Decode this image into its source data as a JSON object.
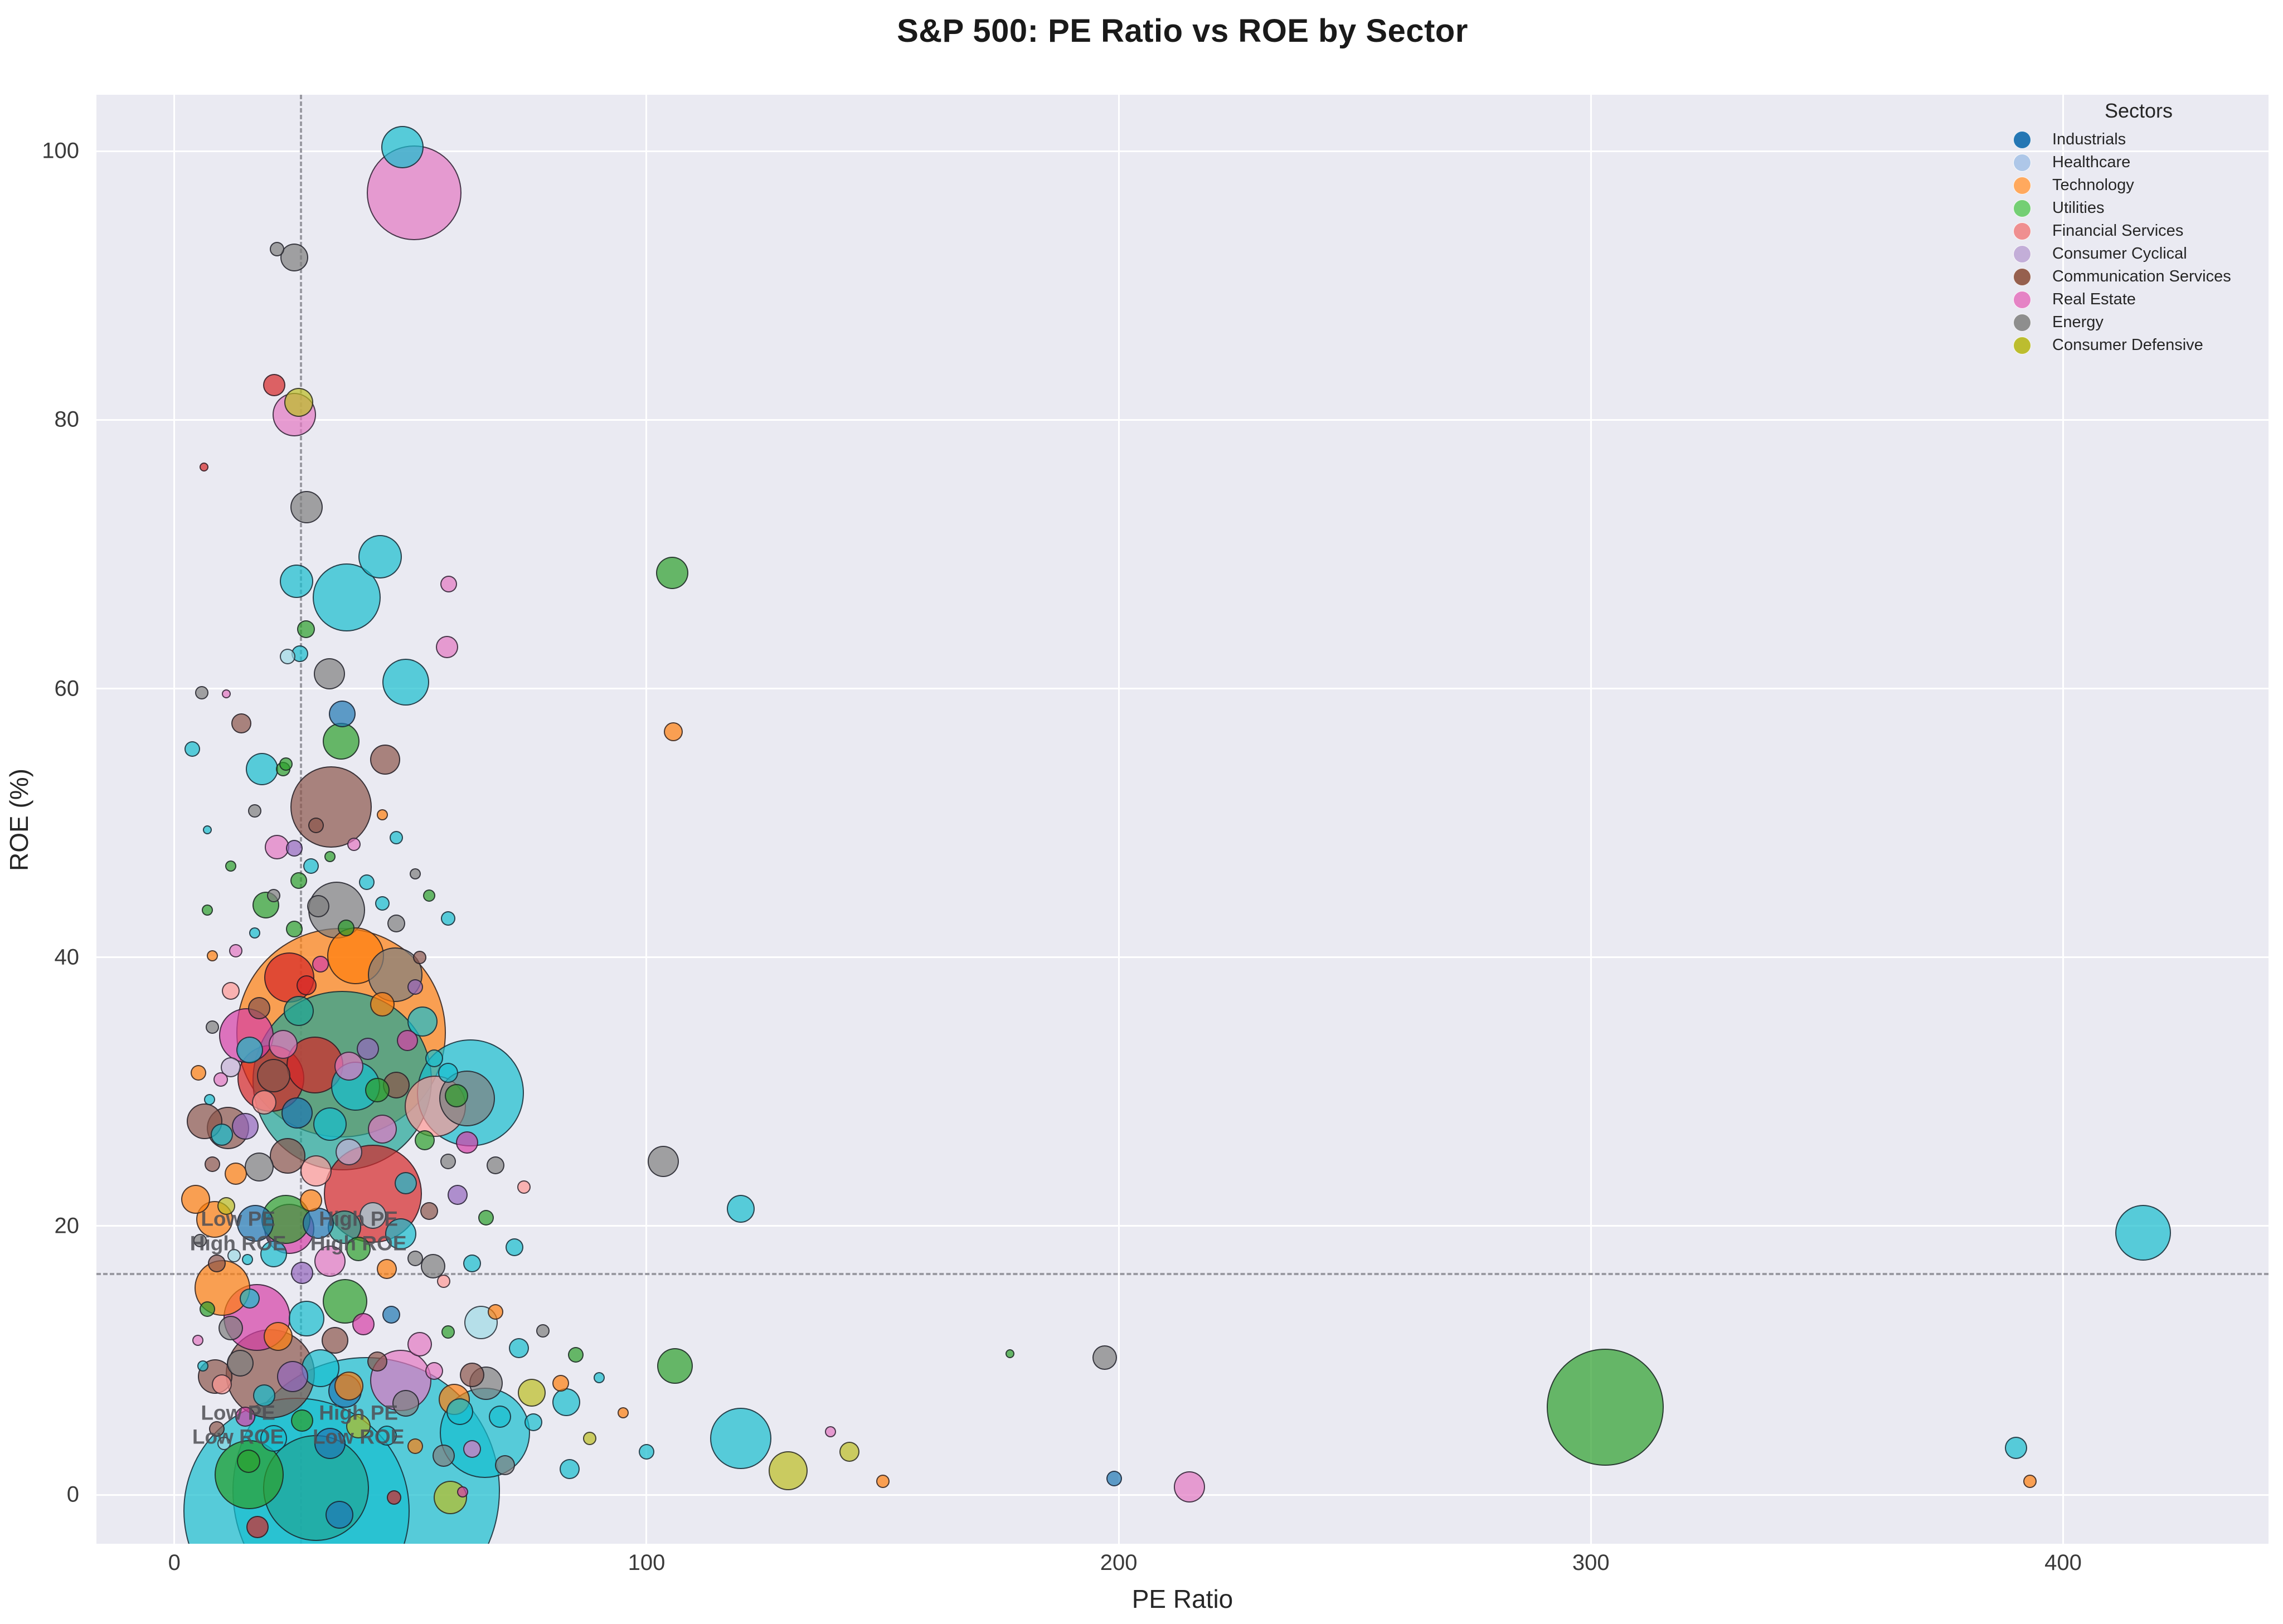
{
  "title": "S&P 500: PE Ratio vs ROE by Sector",
  "axes": {
    "xlabel": "PE Ratio",
    "ylabel": "ROE (%)",
    "x_ticks": [
      0,
      100,
      200,
      300,
      400
    ],
    "y_ticks": [
      0,
      20,
      40,
      60,
      80,
      100
    ],
    "xlim": [
      -16.5,
      443.5
    ],
    "ylim": [
      -3.65,
      104.2
    ],
    "grid": true
  },
  "legend": {
    "title": "Sectors",
    "position": "upper right",
    "items": [
      {
        "label": "Industrials",
        "color": "#2577b4"
      },
      {
        "label": "Healthcare",
        "color": "#aec7e8"
      },
      {
        "label": "Technology",
        "color": "#ffa95e"
      },
      {
        "label": "Utilities",
        "color": "#74cf74"
      },
      {
        "label": "Financial Services",
        "color": "#ef8f90"
      },
      {
        "label": "Consumer Cyclical",
        "color": "#c3aed8"
      },
      {
        "label": "Communication Services",
        "color": "#96604e"
      },
      {
        "label": "Real Estate",
        "color": "#e583c5"
      },
      {
        "label": "Energy",
        "color": "#8e8e8e"
      },
      {
        "label": "Consumer Defensive",
        "color": "#bcbd2f"
      }
    ]
  },
  "annotations": [
    {
      "text": "Low PE\nHigh ROE",
      "pe": 13.5,
      "roe": 19.6
    },
    {
      "text": "High PE\nHigh ROE",
      "pe": 39,
      "roe": 19.6
    },
    {
      "text": "Low PE\nLow ROE",
      "pe": 13.5,
      "roe": 5.2
    },
    {
      "text": "High PE\nLow ROE",
      "pe": 39,
      "roe": 5.2
    }
  ],
  "reference_lines": {
    "vertical_pe": 26.6,
    "horizontal_roe": 16.5
  },
  "chart_data": {
    "type": "scatter",
    "title": "S&P 500: PE Ratio vs ROE by Sector",
    "xlabel": "PE Ratio",
    "ylabel": "ROE (%)",
    "xlim": [
      -16.5,
      443.5
    ],
    "ylim": [
      -3.65,
      104.2
    ],
    "legend_position": "upper right",
    "point_alpha": 0.7,
    "colors": [
      "#1f77b4",
      "#aec7e8",
      "#ff7f0e",
      "#2ca02c",
      "#d62728",
      "#ff9896",
      "#9467bd",
      "#c5b0d5",
      "#8c564b",
      "#e377c2",
      "#7f7f7f",
      "#bcbd22",
      "#17becf",
      "#9edae5",
      "#d63fa6",
      "#1fa596"
    ],
    "points_format": [
      "pe_ratio",
      "roe_pct",
      "radius_px",
      "color_index"
    ],
    "points": [
      [
        48.3,
        100.3,
        38,
        12
      ],
      [
        50.8,
        96.9,
        85,
        9
      ],
      [
        21.8,
        92.7,
        13,
        10
      ],
      [
        25.4,
        92.1,
        25,
        10
      ],
      [
        6.3,
        76.5,
        8,
        4
      ],
      [
        21.1,
        82.6,
        20,
        4
      ],
      [
        26.4,
        81.3,
        26,
        11
      ],
      [
        25.4,
        80.4,
        39,
        9
      ],
      [
        28,
        73.5,
        29,
        10
      ],
      [
        43.6,
        69.8,
        39,
        12
      ],
      [
        25.9,
        68,
        30,
        12
      ],
      [
        36.5,
        66.8,
        61,
        12
      ],
      [
        5.8,
        59.7,
        12,
        10
      ],
      [
        3.8,
        55.5,
        14,
        12
      ],
      [
        27.9,
        64.4,
        16,
        3
      ],
      [
        26.6,
        62.6,
        15,
        12
      ],
      [
        24,
        62.4,
        14,
        13
      ],
      [
        57.7,
        63.1,
        20,
        9
      ],
      [
        58.1,
        67.8,
        15,
        9
      ],
      [
        32.8,
        61.1,
        28,
        10
      ],
      [
        49,
        60.5,
        42,
        12
      ],
      [
        11,
        59.6,
        8,
        9
      ],
      [
        14.2,
        57.4,
        18,
        8
      ],
      [
        35.5,
        58.1,
        24,
        0
      ],
      [
        35.3,
        56.1,
        33,
        3
      ],
      [
        23.6,
        54.4,
        12,
        3
      ],
      [
        18.5,
        54,
        29,
        12
      ],
      [
        23.1,
        54,
        13,
        3
      ],
      [
        44.7,
        54.7,
        27,
        8
      ],
      [
        33.2,
        51.2,
        73,
        8
      ],
      [
        21.7,
        48.2,
        22,
        9
      ],
      [
        25.4,
        48.1,
        15,
        6
      ],
      [
        26.3,
        45.7,
        15,
        3
      ],
      [
        40.7,
        45.6,
        14,
        12
      ],
      [
        19.4,
        43.9,
        24,
        3
      ],
      [
        34.4,
        43.5,
        51,
        10
      ],
      [
        30.5,
        43.8,
        20,
        10
      ],
      [
        25.4,
        42.1,
        15,
        3
      ],
      [
        36.4,
        42.2,
        15,
        3
      ],
      [
        7,
        43.5,
        10,
        3
      ],
      [
        38.4,
        40.1,
        51,
        2
      ],
      [
        46.8,
        38.7,
        49,
        10
      ],
      [
        24.3,
        38.5,
        45,
        4
      ],
      [
        35.3,
        34.4,
        188,
        2
      ],
      [
        15.3,
        34.2,
        49,
        14
      ],
      [
        26.3,
        36,
        27,
        15
      ],
      [
        35.5,
        30.8,
        161,
        15
      ],
      [
        38.4,
        30.4,
        44,
        12
      ],
      [
        29.8,
        32,
        51,
        4
      ],
      [
        52.5,
        35.2,
        27,
        12
      ],
      [
        49.4,
        33.8,
        19,
        14
      ],
      [
        59.7,
        29.7,
        21,
        3
      ],
      [
        62.7,
        29.9,
        96,
        12
      ],
      [
        55.3,
        28.9,
        55,
        5
      ],
      [
        62,
        29.5,
        50,
        10
      ],
      [
        6.4,
        27.8,
        32,
        8
      ],
      [
        11.3,
        27.3,
        38,
        8
      ],
      [
        9.8,
        30.9,
        13,
        9
      ],
      [
        5.1,
        31.4,
        14,
        2
      ],
      [
        4.5,
        22,
        26,
        2
      ],
      [
        20.5,
        31,
        60,
        4
      ],
      [
        42,
        22.4,
        88,
        4
      ],
      [
        23.6,
        20.5,
        44,
        3
      ],
      [
        36.1,
        14.4,
        40,
        3
      ],
      [
        17.2,
        20.2,
        33,
        0
      ],
      [
        30.5,
        20.2,
        28,
        0
      ],
      [
        17.5,
        13.2,
        60,
        14
      ],
      [
        10.2,
        15.4,
        50,
        2
      ],
      [
        20.3,
        9,
        80,
        8
      ],
      [
        47.9,
        8.5,
        55,
        9
      ],
      [
        36.1,
        7.7,
        30,
        0
      ],
      [
        64.9,
        12.8,
        30,
        13
      ],
      [
        66,
        8.3,
        30,
        10
      ],
      [
        59.3,
        7.1,
        28,
        2
      ],
      [
        60.5,
        6.2,
        24,
        12
      ],
      [
        54.8,
        17,
        22,
        10
      ],
      [
        8.5,
        20.5,
        33,
        2
      ],
      [
        24.4,
        19.8,
        45,
        14
      ],
      [
        12.6,
        17.8,
        12,
        13
      ],
      [
        15.5,
        17.5,
        10,
        12
      ],
      [
        40.6,
        0.3,
        240,
        12
      ],
      [
        25.9,
        -1.2,
        203,
        12
      ],
      [
        30,
        0.5,
        95,
        15
      ],
      [
        15.8,
        1.5,
        62,
        3
      ],
      [
        15.7,
        2.5,
        21,
        3
      ],
      [
        17.6,
        -2.4,
        20,
        4
      ],
      [
        46.5,
        -0.2,
        13,
        4
      ],
      [
        61,
        0.2,
        10,
        14
      ],
      [
        35,
        -1.5,
        25,
        0
      ],
      [
        65.8,
        4.6,
        81,
        12
      ],
      [
        75.7,
        7.6,
        25,
        11
      ],
      [
        58.4,
        -0.2,
        30,
        11
      ],
      [
        81.8,
        8.3,
        15,
        2
      ],
      [
        83,
        6.9,
        25,
        12
      ],
      [
        70,
        2.2,
        18,
        10
      ],
      [
        83.7,
        1.9,
        18,
        12
      ],
      [
        10.5,
        3.8,
        12,
        13
      ],
      [
        8.6,
        8.8,
        31,
        8
      ],
      [
        105.4,
        68.6,
        29,
        3
      ],
      [
        105.7,
        56.8,
        17,
        2
      ],
      [
        103.5,
        24.8,
        28,
        10
      ],
      [
        120,
        21.3,
        25,
        12
      ],
      [
        106,
        9.6,
        32,
        3
      ],
      [
        120,
        4.2,
        55,
        12
      ],
      [
        130,
        1.8,
        35,
        11
      ],
      [
        150,
        1,
        12,
        2
      ],
      [
        143,
        3.2,
        18,
        11
      ],
      [
        139,
        4.7,
        10,
        9
      ],
      [
        177,
        10.5,
        8,
        3
      ],
      [
        197,
        10.2,
        22,
        10
      ],
      [
        199,
        1.2,
        14,
        0
      ],
      [
        215,
        0.6,
        28,
        9
      ],
      [
        303,
        6.5,
        105,
        3
      ],
      [
        417,
        19.5,
        50,
        12
      ],
      [
        390,
        3.5,
        20,
        12
      ],
      [
        393,
        1,
        12,
        2
      ],
      [
        13,
        40.5,
        12,
        9
      ],
      [
        17,
        41.8,
        10,
        12
      ],
      [
        21,
        44.6,
        12,
        10
      ],
      [
        29,
        46.8,
        14,
        12
      ],
      [
        33,
        47.5,
        10,
        3
      ],
      [
        44,
        44,
        13,
        12
      ],
      [
        47,
        42.5,
        16,
        10
      ],
      [
        52,
        40,
        12,
        8
      ],
      [
        12,
        37.5,
        16,
        5
      ],
      [
        18,
        36.2,
        20,
        8
      ],
      [
        44,
        36.5,
        22,
        2
      ],
      [
        51,
        37.8,
        14,
        6
      ],
      [
        8,
        34.8,
        12,
        10
      ],
      [
        23,
        33.5,
        26,
        9
      ],
      [
        28,
        37.9,
        18,
        4
      ],
      [
        31,
        39.5,
        15,
        14
      ],
      [
        41,
        33.2,
        20,
        6
      ],
      [
        55,
        32.5,
        16,
        12
      ],
      [
        47,
        30.5,
        24,
        8
      ],
      [
        12,
        31.8,
        18,
        7
      ],
      [
        7.5,
        29.4,
        10,
        12
      ],
      [
        19,
        29.2,
        22,
        5
      ],
      [
        26,
        28.4,
        28,
        0
      ],
      [
        33,
        27.6,
        30,
        12
      ],
      [
        44,
        27.2,
        26,
        9
      ],
      [
        53,
        26.4,
        18,
        3
      ],
      [
        58,
        24.8,
        14,
        10
      ],
      [
        8,
        24.6,
        14,
        8
      ],
      [
        13,
        23.9,
        20,
        2
      ],
      [
        18,
        24.4,
        26,
        10
      ],
      [
        24,
        25.2,
        32,
        8
      ],
      [
        30,
        24.1,
        28,
        5
      ],
      [
        37,
        25.5,
        24,
        7
      ],
      [
        49,
        23.2,
        20,
        12
      ],
      [
        5.5,
        18.9,
        12,
        10
      ],
      [
        9,
        17.2,
        16,
        8
      ],
      [
        21,
        17.9,
        24,
        12
      ],
      [
        27,
        16.5,
        20,
        6
      ],
      [
        33,
        17.4,
        28,
        9
      ],
      [
        39,
        18.3,
        22,
        3
      ],
      [
        45,
        16.8,
        18,
        2
      ],
      [
        51,
        17.6,
        14,
        10
      ],
      [
        57,
        15.9,
        12,
        5
      ],
      [
        63,
        17.2,
        16,
        12
      ],
      [
        7,
        13.8,
        14,
        3
      ],
      [
        12,
        12.4,
        22,
        10
      ],
      [
        16,
        14.6,
        18,
        12
      ],
      [
        22,
        11.8,
        26,
        2
      ],
      [
        28,
        13.1,
        32,
        12
      ],
      [
        34,
        11.5,
        24,
        8
      ],
      [
        40,
        12.7,
        20,
        14
      ],
      [
        46,
        13.4,
        16,
        0
      ],
      [
        52,
        11.2,
        22,
        9
      ],
      [
        58,
        12.1,
        12,
        3
      ],
      [
        6,
        9.6,
        10,
        12
      ],
      [
        10,
        8.2,
        18,
        5
      ],
      [
        14,
        9.8,
        24,
        10
      ],
      [
        19,
        7.4,
        20,
        12
      ],
      [
        25,
        8.8,
        28,
        6
      ],
      [
        31,
        9.4,
        34,
        12
      ],
      [
        37,
        8.1,
        26,
        2
      ],
      [
        43,
        9.9,
        18,
        8
      ],
      [
        49,
        6.8,
        24,
        10
      ],
      [
        55,
        9.2,
        16,
        9
      ],
      [
        27,
        5.5,
        20,
        3
      ],
      [
        21,
        4.2,
        24,
        12
      ],
      [
        15,
        5.8,
        18,
        14
      ],
      [
        9,
        4.9,
        14,
        8
      ],
      [
        33,
        3.8,
        28,
        0
      ],
      [
        39,
        5.1,
        22,
        11
      ],
      [
        45,
        4.4,
        18,
        12
      ],
      [
        51,
        3.6,
        14,
        2
      ],
      [
        57,
        2.9,
        20,
        10
      ],
      [
        63,
        3.4,
        16,
        9
      ],
      [
        69,
        5.8,
        20,
        12
      ],
      [
        36,
        19.9,
        30,
        15
      ],
      [
        42,
        20.8,
        24,
        13
      ],
      [
        11,
        21.5,
        16,
        11
      ],
      [
        29,
        21.9,
        20,
        2
      ],
      [
        48,
        19.4,
        28,
        12
      ],
      [
        54,
        21.1,
        16,
        8
      ],
      [
        60,
        22.3,
        18,
        6
      ],
      [
        66,
        20.6,
        14,
        3
      ],
      [
        72,
        18.4,
        16,
        12
      ],
      [
        5,
        11.5,
        10,
        9
      ],
      [
        68,
        13.6,
        14,
        2
      ],
      [
        73,
        10.9,
        18,
        12
      ],
      [
        78,
        12.2,
        12,
        10
      ],
      [
        85,
        10.4,
        14,
        3
      ],
      [
        90,
        8.7,
        10,
        12
      ],
      [
        62,
        26.2,
        20,
        14
      ],
      [
        68,
        24.5,
        16,
        10
      ],
      [
        74,
        22.9,
        12,
        5
      ],
      [
        16,
        33.1,
        24,
        12
      ],
      [
        21,
        31.2,
        30,
        8
      ],
      [
        37,
        31.9,
        26,
        9
      ],
      [
        43,
        30.1,
        22,
        3
      ],
      [
        58,
        31.4,
        18,
        12
      ],
      [
        10,
        26.8,
        20,
        12
      ],
      [
        15,
        27.4,
        24,
        6
      ],
      [
        63,
        8.9,
        22,
        8
      ],
      [
        76,
        5.4,
        16,
        12
      ],
      [
        88,
        4.2,
        12,
        11
      ],
      [
        95,
        6.1,
        10,
        2
      ],
      [
        100,
        3.2,
        14,
        12
      ],
      [
        47,
        48.9,
        12,
        12
      ],
      [
        51,
        46.2,
        10,
        10
      ],
      [
        7,
        49.5,
        8,
        12
      ],
      [
        12,
        46.8,
        10,
        3
      ],
      [
        30,
        49.8,
        14,
        8
      ],
      [
        38,
        48.4,
        12,
        9
      ],
      [
        44,
        50.6,
        10,
        2
      ],
      [
        17,
        50.9,
        12,
        10
      ],
      [
        54,
        44.6,
        11,
        3
      ],
      [
        58,
        42.9,
        13,
        12
      ],
      [
        8,
        40.1,
        10,
        2
      ]
    ]
  }
}
